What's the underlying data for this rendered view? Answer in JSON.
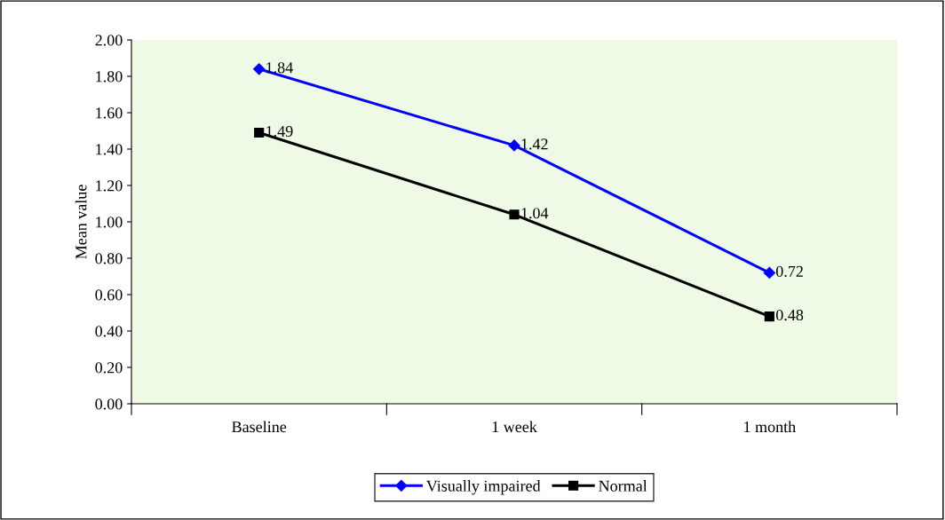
{
  "chart_data": {
    "type": "line",
    "ylabel": "Mean value",
    "categories": [
      "Baseline",
      "1 week",
      "1 month"
    ],
    "series": [
      {
        "name": "Visually impaired",
        "color": "#0000ff",
        "marker": "diamond",
        "values": [
          1.84,
          1.42,
          0.72
        ]
      },
      {
        "name": "Normal",
        "color": "#000000",
        "marker": "square",
        "values": [
          1.49,
          1.04,
          0.48
        ]
      }
    ],
    "ylim": [
      0,
      2
    ],
    "yticks": [
      {
        "value": 0,
        "label": "0.00"
      },
      {
        "value": 0.2,
        "label": "0.20"
      },
      {
        "value": 0.4,
        "label": "0.40"
      },
      {
        "value": 0.6,
        "label": "0.60"
      },
      {
        "value": 0.8,
        "label": "0.80"
      },
      {
        "value": 1.0,
        "label": "1.00"
      },
      {
        "value": 1.2,
        "label": "1.20"
      },
      {
        "value": 1.4,
        "label": "1.40"
      },
      {
        "value": 1.6,
        "label": "1.60"
      },
      {
        "value": 1.8,
        "label": "1.80"
      },
      {
        "value": 2.0,
        "label": "2.00"
      }
    ],
    "data_labels": true,
    "legend": "bottom",
    "grid": false,
    "line_style": "solid"
  }
}
